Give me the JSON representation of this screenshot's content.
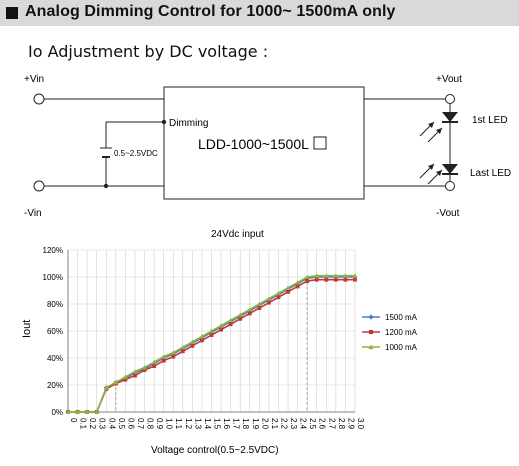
{
  "header": {
    "title": "Analog Dimming Control for 1000~ 1500mA only"
  },
  "subheading": "Io Adjustment by DC voltage :",
  "schematic": {
    "vin_plus": "+Vin",
    "vin_minus": "-Vin",
    "vout_plus": "+Vout",
    "vout_minus": "-Vout",
    "dimming_label": "Dimming",
    "module_label": "LDD-1000~1500L",
    "control_voltage": "0.5~2.5VDC",
    "led_first": "1st LED",
    "led_last": "Last LED"
  },
  "chart_data": {
    "type": "line",
    "title": "24Vdc input",
    "xlabel": "Voltage control(0.5~2.5VDC)",
    "ylabel": "Iout",
    "x_ticks": [
      "0",
      "0.1",
      "0.2",
      "0.3",
      "0.4",
      "0.5",
      "0.6",
      "0.7",
      "0.8",
      "0.9",
      "1.0",
      "1.1",
      "1.2",
      "1.3",
      "1.4",
      "1.5",
      "1.6",
      "1.7",
      "1.8",
      "1.9",
      "2.0",
      "2.1",
      "2.2",
      "2.3",
      "2.4",
      "2.5",
      "2.6",
      "2.7",
      "2.8",
      "2.9",
      "3.0"
    ],
    "y_ticks": [
      "0%",
      "20%",
      "40%",
      "60%",
      "80%",
      "100%",
      "120%"
    ],
    "ylim": [
      0,
      120
    ],
    "x": [
      0,
      0.1,
      0.2,
      0.3,
      0.4,
      0.5,
      0.6,
      0.7,
      0.8,
      0.9,
      1.0,
      1.1,
      1.2,
      1.3,
      1.4,
      1.5,
      1.6,
      1.7,
      1.8,
      1.9,
      2.0,
      2.1,
      2.2,
      2.3,
      2.4,
      2.5,
      2.6,
      2.7,
      2.8,
      2.9,
      3.0
    ],
    "series": [
      {
        "name": "1500 mA",
        "color": "#4a7ec4",
        "marker": "diamond",
        "values": [
          0,
          0,
          0,
          0,
          18,
          22,
          25,
          29,
          32,
          36,
          40,
          43,
          47,
          51,
          55,
          59,
          63,
          67,
          71,
          75,
          79,
          83,
          87,
          91,
          95,
          99,
          100,
          100,
          100,
          100,
          100
        ]
      },
      {
        "name": "1200 mA",
        "color": "#c0393b",
        "marker": "square",
        "values": [
          0,
          0,
          0,
          0,
          17,
          21,
          24,
          27,
          31,
          34,
          38,
          41,
          45,
          49,
          53,
          57,
          61,
          65,
          69,
          73,
          77,
          81,
          85,
          89,
          93,
          97,
          98,
          98,
          98,
          98,
          98
        ]
      },
      {
        "name": "1000 mA",
        "color": "#8db640",
        "marker": "triangle",
        "values": [
          0,
          0,
          0,
          0,
          18,
          22,
          26,
          30,
          33,
          37,
          41,
          44,
          48,
          52,
          56,
          60,
          64,
          68,
          72,
          76,
          80,
          84,
          88,
          92,
          96,
          100,
          101,
          101,
          101,
          101,
          101
        ]
      }
    ],
    "reference_lines_x": [
      0.5,
      2.5
    ],
    "grid": true,
    "legend_position": "right"
  }
}
